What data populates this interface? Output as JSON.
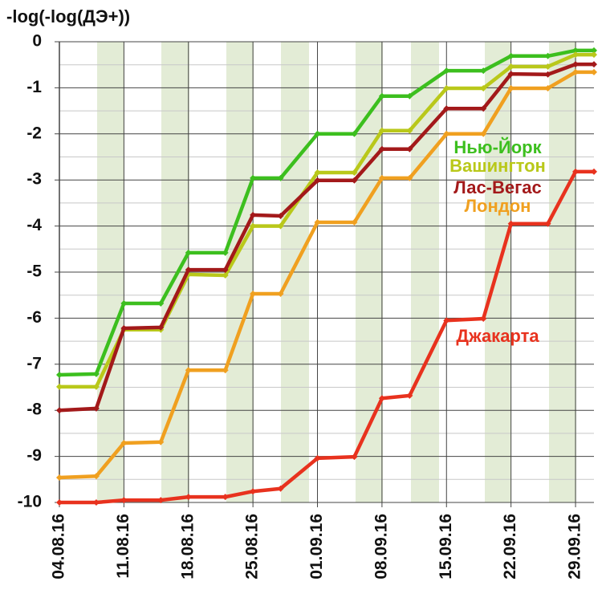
{
  "chart_data": {
    "type": "line",
    "ylabel": "-log(-log(ДЭ+))",
    "x": [
      "04.08.16",
      "08.08.16",
      "11.08.16",
      "15.08.16",
      "18.08.16",
      "22.08.16",
      "25.08.16",
      "28.08.16",
      "01.09.16",
      "05.09.16",
      "08.09.16",
      "11.09.16",
      "15.09.16",
      "19.09.16",
      "22.09.16",
      "26.09.16",
      "29.09.16",
      "01.10.16"
    ],
    "xlim": [
      "04.08.16",
      "01.10.16"
    ],
    "xticks": [
      "04.08.16",
      "11.08.16",
      "18.08.16",
      "25.08.16",
      "01.09.16",
      "08.09.16",
      "15.09.16",
      "22.09.16",
      "29.09.16"
    ],
    "ylim": [
      -10,
      0
    ],
    "yticks": [
      0,
      -1,
      -2,
      -3,
      -4,
      -5,
      -6,
      -7,
      -8,
      -9,
      -10
    ],
    "grid": true,
    "series": [
      {
        "name": "Нью-Йорк",
        "color": "#3cbf1e",
        "values": [
          -7.23,
          -7.21,
          -5.68,
          -5.68,
          -4.58,
          -4.58,
          -2.96,
          -2.96,
          -2.0,
          -2.0,
          -1.18,
          -1.18,
          -0.63,
          -0.63,
          -0.31,
          -0.31,
          -0.19,
          -0.19
        ]
      },
      {
        "name": "Вашингтон",
        "color": "#b9c81a",
        "values": [
          -7.49,
          -7.49,
          -6.25,
          -6.25,
          -5.05,
          -5.07,
          -4.0,
          -4.0,
          -2.84,
          -2.84,
          -1.93,
          -1.93,
          -1.01,
          -1.01,
          -0.54,
          -0.54,
          -0.28,
          -0.28
        ]
      },
      {
        "name": "Лас-Вегас",
        "color": "#a3191a",
        "values": [
          -8.0,
          -7.96,
          -6.22,
          -6.2,
          -4.95,
          -4.95,
          -3.76,
          -3.78,
          -3.01,
          -3.01,
          -2.33,
          -2.33,
          -1.45,
          -1.45,
          -0.7,
          -0.71,
          -0.49,
          -0.49
        ]
      },
      {
        "name": "Лондон",
        "color": "#f0a020",
        "values": [
          -9.46,
          -9.43,
          -8.71,
          -8.69,
          -7.13,
          -7.13,
          -5.47,
          -5.47,
          -3.92,
          -3.92,
          -2.96,
          -2.96,
          -2.0,
          -2.0,
          -1.01,
          -1.01,
          -0.66,
          -0.66
        ]
      },
      {
        "name": "Джакарта",
        "color": "#e8321e",
        "values": [
          -10,
          -10,
          -9.95,
          -9.95,
          -9.88,
          -9.88,
          -9.76,
          -9.7,
          -9.04,
          -9.01,
          -7.74,
          -7.68,
          -6.05,
          -6.01,
          -3.95,
          -3.95,
          -2.82,
          -2.82
        ]
      }
    ]
  }
}
